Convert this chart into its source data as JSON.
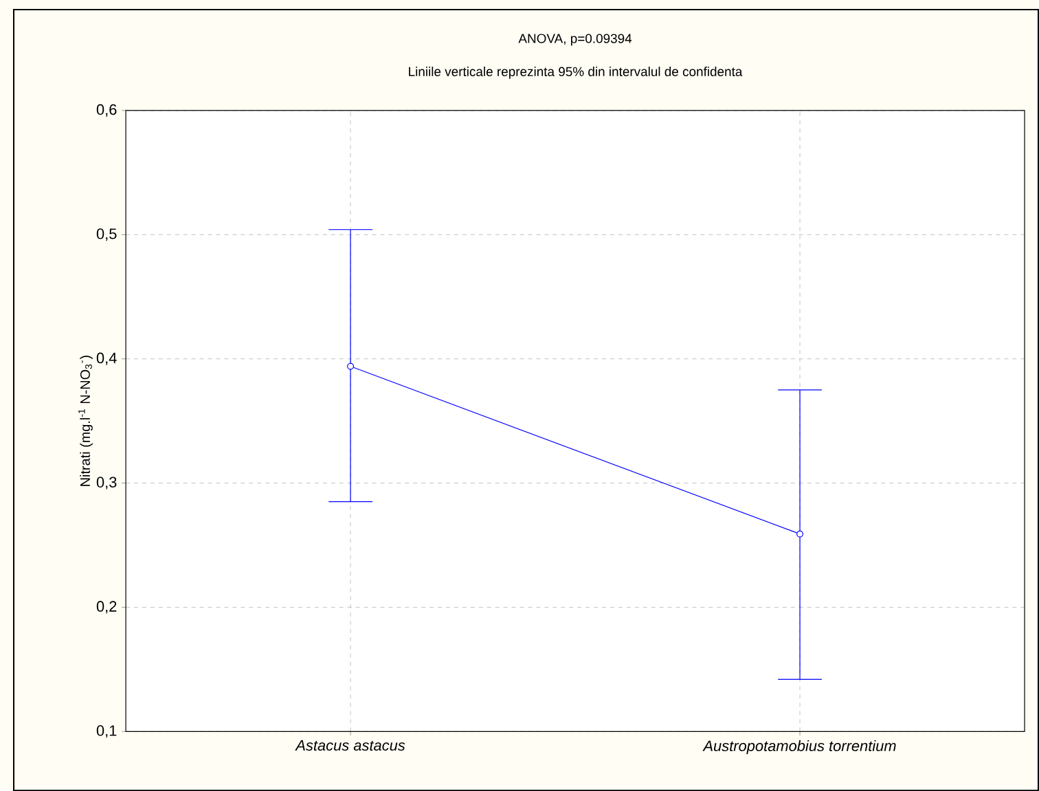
{
  "chart_data": {
    "type": "line",
    "title": "ANOVA, p=0.09394",
    "subtitle": "Liniile verticale reprezinta 95% din intervalul de confidenta",
    "ylabel": "Nitrati (mg.l$^{-1}$ N-NO$_{3}$$^{-}$)",
    "categories": [
      "Astacus astacus",
      "Austropotamobius torrentium"
    ],
    "series": [
      {
        "color": "#0000ff",
        "values": [
          0.394,
          0.259
        ],
        "errors": [
          [
            0.285,
            0.504
          ],
          [
            0.142,
            0.375
          ]
        ]
      }
    ],
    "ylim": [
      0.1,
      0.6
    ],
    "yticks": [
      {
        "value": 0.1,
        "label": "0,1"
      },
      {
        "value": 0.2,
        "label": "0,2"
      },
      {
        "value": 0.3,
        "label": "0,3"
      },
      {
        "value": 0.4,
        "label": "0,4"
      },
      {
        "value": 0.5,
        "label": "0,5"
      },
      {
        "value": 0.6,
        "label": "0,6"
      }
    ],
    "grid": true,
    "marker": "circle",
    "line_style": "solid"
  }
}
